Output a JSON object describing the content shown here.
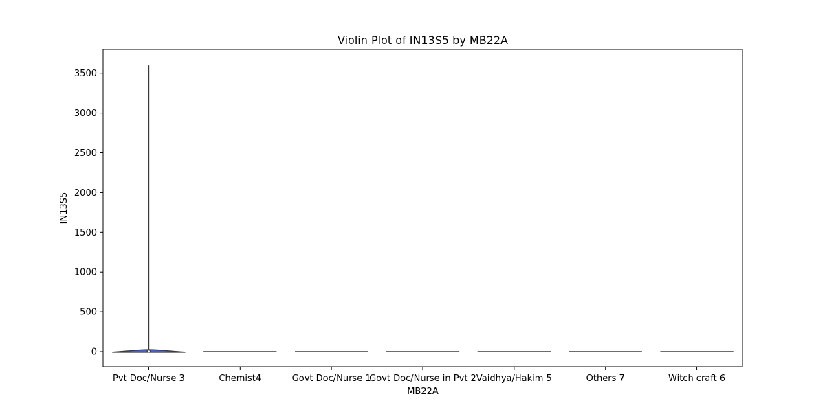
{
  "chart_data": {
    "type": "violin",
    "title": "Violin Plot of IN13S5 by MB22A",
    "xlabel": "MB22A",
    "ylabel": "IN13S5",
    "ylim": [
      -190,
      3800
    ],
    "yticks": [
      0,
      500,
      1000,
      1500,
      2000,
      2500,
      3000,
      3500
    ],
    "grid": false,
    "categories": [
      "Pvt Doc/Nurse 3",
      "Chemist4",
      "Govt Doc/Nurse 1",
      "Govt Doc/Nurse in Pvt 2",
      "Vaidhya/Hakim 5",
      "Others 7",
      "Witch craft 6"
    ],
    "violins": [
      {
        "min": 0,
        "max": 3600,
        "median": 2,
        "q1": 0,
        "q3": 15,
        "peak_value": 25,
        "width": 0.8
      },
      {
        "min": 0,
        "max": 0,
        "median": 0,
        "q1": 0,
        "q3": 0,
        "peak_value": 0,
        "width": 0.8
      },
      {
        "min": 0,
        "max": 0,
        "median": 0,
        "q1": 0,
        "q3": 0,
        "peak_value": 0,
        "width": 0.8
      },
      {
        "min": 0,
        "max": 0,
        "median": 0,
        "q1": 0,
        "q3": 0,
        "peak_value": 0,
        "width": 0.8
      },
      {
        "min": 0,
        "max": 0,
        "median": 0,
        "q1": 0,
        "q3": 0,
        "peak_value": 0,
        "width": 0.8
      },
      {
        "min": 0,
        "max": 0,
        "median": 0,
        "q1": 0,
        "q3": 0,
        "peak_value": 0,
        "width": 0.8
      },
      {
        "min": 0,
        "max": 0,
        "median": 0,
        "q1": 0,
        "q3": 0,
        "peak_value": 0,
        "width": 0.8
      }
    ],
    "colors": {
      "violin_fill": "#4a5fc1",
      "violin_edge": "#3b3b3b",
      "box": "#3b3b3b",
      "median": "#ffffff",
      "axis": "#000000"
    }
  }
}
